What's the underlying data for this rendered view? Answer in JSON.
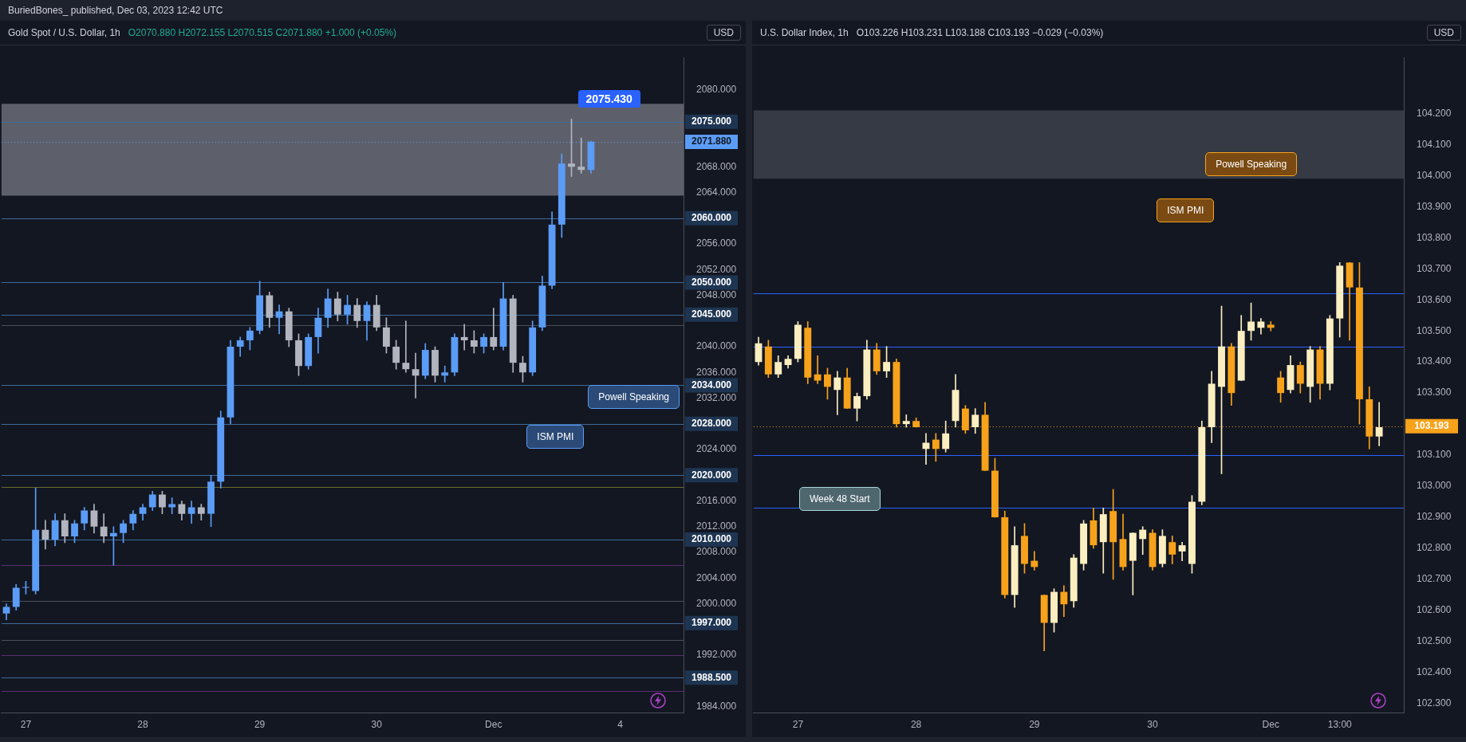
{
  "chart_data": [
    {
      "type": "candlestick",
      "title": "Gold Spot / U.S. Dollar, 1h",
      "subtitle": "O2070.880  H2072.155  L2070.515  C2071.880  +1.000 (+0.05%)",
      "ylabel": "USD",
      "categories": [
        null,
        null,
        "27",
        null,
        null,
        null,
        null,
        null,
        null,
        null,
        null,
        null,
        null,
        null,
        "28",
        null,
        null,
        null,
        null,
        null,
        null,
        null,
        null,
        null,
        null,
        null,
        "29",
        null,
        null,
        null,
        null,
        null,
        null,
        null,
        null,
        null,
        null,
        null,
        "30",
        null,
        null,
        null,
        null,
        null,
        null,
        null,
        null,
        null,
        null,
        null,
        "Dec",
        null,
        null,
        null,
        null,
        null,
        null,
        null,
        null,
        null,
        null,
        null,
        null,
        "4",
        null,
        null,
        null,
        null,
        null,
        null
      ],
      "ohlc": [
        [
          1998.5,
          2000,
          1997.5,
          1999.5
        ],
        [
          1999.5,
          2003,
          1999,
          2002.5
        ],
        [
          2002.5,
          2003.5,
          2001.5,
          2002.5
        ],
        [
          2002,
          2018,
          2001.5,
          2011.5
        ],
        [
          2011.5,
          2013,
          2008.5,
          2010
        ],
        [
          2010,
          2014,
          2009,
          2013
        ],
        [
          2013,
          2014,
          2009.5,
          2010.5
        ],
        [
          2010.5,
          2013,
          2009.5,
          2012.5
        ],
        [
          2012.5,
          2015,
          2011.5,
          2014.5
        ],
        [
          2014.5,
          2015.5,
          2011,
          2012
        ],
        [
          2012,
          2014,
          2009.5,
          2010.5
        ],
        [
          2010.5,
          2012,
          2006,
          2011
        ],
        [
          2011,
          2013,
          2009.5,
          2012.5
        ],
        [
          2012.5,
          2014.5,
          2011.5,
          2014
        ],
        [
          2014,
          2015.5,
          2013,
          2015
        ],
        [
          2015,
          2017.5,
          2014.5,
          2017
        ],
        [
          2017,
          2017.5,
          2014,
          2015
        ],
        [
          2015,
          2016.5,
          2014,
          2015.5
        ],
        [
          2015.5,
          2016,
          2013,
          2014
        ],
        [
          2014,
          2016,
          2012.5,
          2015
        ],
        [
          2015,
          2015.5,
          2013,
          2014
        ],
        [
          2014,
          2020,
          2012,
          2019
        ],
        [
          2019,
          2030,
          2018,
          2029
        ],
        [
          2029,
          2041,
          2028,
          2040
        ],
        [
          2040,
          2041.5,
          2038.5,
          2041
        ],
        [
          2041,
          2043,
          2039.5,
          2042.5
        ],
        [
          2042.5,
          2050.2,
          2042,
          2048
        ],
        [
          2048,
          2048.5,
          2043,
          2044.5
        ],
        [
          2044.5,
          2046.5,
          2042,
          2045.5
        ],
        [
          2045.5,
          2046,
          2040,
          2041
        ],
        [
          2041,
          2042,
          2035.5,
          2037
        ],
        [
          2037,
          2042,
          2036.5,
          2041.5
        ],
        [
          2041.5,
          2046,
          2039,
          2044.5
        ],
        [
          2044.5,
          2049,
          2043,
          2047.5
        ],
        [
          2047.5,
          2048.5,
          2044,
          2045
        ],
        [
          2045,
          2048,
          2043.5,
          2046.5
        ],
        [
          2046.5,
          2047.5,
          2043,
          2044
        ],
        [
          2044,
          2047,
          2041,
          2046.5
        ],
        [
          2046.5,
          2048,
          2042.5,
          2043
        ],
        [
          2043,
          2044.5,
          2039,
          2040
        ],
        [
          2040,
          2041,
          2036.5,
          2037.5
        ],
        [
          2037.5,
          2044,
          2036,
          2036.5
        ],
        [
          2036.5,
          2039,
          2032,
          2035.5
        ],
        [
          2035.5,
          2040.5,
          2035,
          2039.5
        ],
        [
          2039.5,
          2040,
          2034.5,
          2035.5
        ],
        [
          2035.5,
          2037,
          2034.5,
          2036
        ],
        [
          2036,
          2042,
          2035.5,
          2041.5
        ],
        [
          2041.5,
          2043.5,
          2039.5,
          2041
        ],
        [
          2041,
          2042.5,
          2039,
          2040
        ],
        [
          2040,
          2042,
          2039,
          2041.5
        ],
        [
          2041.5,
          2046,
          2039.5,
          2040
        ],
        [
          2040,
          2050,
          2039.5,
          2047.5
        ],
        [
          2047.5,
          2048,
          2036,
          2037.5
        ],
        [
          2037.5,
          2038.5,
          2034.5,
          2036
        ],
        [
          2036,
          2044,
          2035.5,
          2043
        ],
        [
          2043,
          2051,
          2042.5,
          2049.5
        ],
        [
          2049.5,
          2061,
          2049,
          2059
        ],
        [
          2059,
          2070,
          2057,
          2068.5
        ],
        [
          2068.5,
          2075.43,
          2066.5,
          2068
        ],
        [
          2068,
          2072.5,
          2067,
          2067.5
        ],
        [
          2067.5,
          2072,
          2067,
          2071.9
        ],
        null,
        null,
        null,
        null,
        null,
        null,
        null,
        null,
        null
      ],
      "colors": [
        "#5b9cf6",
        "#5b9cf6",
        "#5b9cf6",
        "#5b9cf6",
        "#b2b5be",
        "#5b9cf6",
        "#b2b5be",
        "#5b9cf6",
        "#5b9cf6",
        "#b2b5be",
        "#b2b5be",
        "#5b9cf6",
        "#5b9cf6",
        "#5b9cf6",
        "#5b9cf6",
        "#5b9cf6",
        "#b2b5be",
        "#5b9cf6",
        "#b2b5be",
        "#5b9cf6",
        "#b2b5be",
        "#5b9cf6",
        "#5b9cf6",
        "#5b9cf6",
        "#5b9cf6",
        "#5b9cf6",
        "#5b9cf6",
        "#b2b5be",
        "#5b9cf6",
        "#b2b5be",
        "#b2b5be",
        "#5b9cf6",
        "#5b9cf6",
        "#5b9cf6",
        "#b2b5be",
        "#5b9cf6",
        "#b2b5be",
        "#5b9cf6",
        "#b2b5be",
        "#b2b5be",
        "#b2b5be",
        "#b2b5be",
        "#b2b5be",
        "#5b9cf6",
        "#b2b5be",
        "#5b9cf6",
        "#5b9cf6",
        "#b2b5be",
        "#b2b5be",
        "#5b9cf6",
        "#b2b5be",
        "#5b9cf6",
        "#b2b5be",
        "#b2b5be",
        "#5b9cf6",
        "#5b9cf6",
        "#5b9cf6",
        "#5b9cf6",
        "#b2b5be",
        "#b2b5be",
        "#5b9cf6",
        null,
        null,
        null,
        null,
        null,
        null,
        null,
        null,
        null
      ],
      "ylim": [
        1983,
        2085
      ],
      "yticks": [
        {
          "value": 1984,
          "label": "1984.000"
        },
        {
          "value": 1992,
          "label": "1992.000"
        },
        {
          "value": 2000,
          "label": "2000.000"
        },
        {
          "value": 2004,
          "label": "2004.000"
        },
        {
          "value": 2008,
          "label": "2008.000"
        },
        {
          "value": 2012,
          "label": "2012.000"
        },
        {
          "value": 2016,
          "label": "2016.000"
        },
        {
          "value": 2024,
          "label": "2024.000"
        },
        {
          "value": 2032,
          "label": "2032.000"
        },
        {
          "value": 2036,
          "label": "2036.000"
        },
        {
          "value": 2040,
          "label": "2040.000"
        },
        {
          "value": 2048,
          "label": "2048.000"
        },
        {
          "value": 2052,
          "label": "2052.000"
        },
        {
          "value": 2056,
          "label": "2056.000"
        },
        {
          "value": 2064,
          "label": "2064.000"
        },
        {
          "value": 2068,
          "label": "2068.000"
        },
        {
          "value": 2080,
          "label": "2080.000"
        }
      ],
      "bands": [
        {
          "axis": "y",
          "from": 2063.5,
          "to": 2077.8,
          "color": "#5d606b"
        }
      ],
      "ref_lines": [
        {
          "axis": "y",
          "value": 2075,
          "label": "2075.000",
          "color": "#3d6a9a"
        },
        {
          "axis": "y",
          "value": 2060,
          "label": "2060.000",
          "color": "#3d6a9a"
        },
        {
          "axis": "y",
          "value": 2050,
          "label": "2050.000",
          "color": "#3d6a9a"
        },
        {
          "axis": "y",
          "value": 2045,
          "label": "2045.000",
          "color": "#3d6a9a"
        },
        {
          "axis": "y",
          "value": 2034,
          "label": "2034.000",
          "color": "#3d6a9a"
        },
        {
          "axis": "y",
          "value": 2028,
          "label": "2028.000",
          "color": "#3d6a9a"
        },
        {
          "axis": "y",
          "value": 2020,
          "label": "2020.000",
          "color": "#3d6a9a"
        },
        {
          "axis": "y",
          "value": 2010,
          "label": "2010.000",
          "color": "#3d6a9a"
        },
        {
          "axis": "y",
          "value": 1997,
          "label": "1997.000",
          "color": "#3d6a9a"
        },
        {
          "axis": "y",
          "value": 1988.5,
          "label": "1988.500",
          "color": "#3d6a9a"
        },
        {
          "axis": "y",
          "value": 2071.88,
          "label": "2071.880",
          "color": "#5b9cf6",
          "line_style": "dotted"
        },
        {
          "axis": "y",
          "value": 2018.2,
          "color": "#6b6a2a"
        },
        {
          "axis": "y",
          "value": 2006,
          "color": "#5a2d6e"
        },
        {
          "axis": "y",
          "value": 1992,
          "color": "#5a2d6e"
        },
        {
          "axis": "y",
          "value": 1986.4,
          "color": "#5a2d6e"
        },
        {
          "axis": "y",
          "value": 2043.3,
          "color": "#4a4e58"
        },
        {
          "axis": "y",
          "value": 2000.4,
          "color": "#4a4e58"
        },
        {
          "axis": "y",
          "value": 1994.4,
          "color": "#4a4e58"
        }
      ],
      "annotations": [
        "BuriedBones_ published, Dec 03, 2023 12:42 UTC",
        {
          "text": "2075.430",
          "y": 2075.43
        },
        "Powell Speaking",
        "ISM PMI"
      ]
    },
    {
      "type": "candlestick",
      "title": "U.S. Dollar Index, 1h",
      "subtitle": "O103.226  H103.231  L103.188  C103.193  −0.029 (−0.03%)",
      "ylabel": "USD",
      "categories": [
        null,
        null,
        null,
        null,
        "27",
        null,
        null,
        null,
        null,
        null,
        null,
        null,
        null,
        null,
        null,
        null,
        "28",
        null,
        null,
        null,
        null,
        null,
        null,
        null,
        null,
        null,
        null,
        null,
        "29",
        null,
        null,
        null,
        null,
        null,
        null,
        null,
        null,
        null,
        null,
        null,
        "30",
        null,
        null,
        null,
        null,
        null,
        null,
        null,
        null,
        null,
        null,
        null,
        "Dec",
        null,
        null,
        null,
        null,
        null,
        null,
        "13:00",
        null,
        null,
        null,
        null,
        null,
        null
      ],
      "ohlc": [
        [
          103.4,
          103.48,
          103.39,
          103.46
        ],
        [
          103.45,
          103.47,
          103.35,
          103.36
        ],
        [
          103.36,
          103.42,
          103.35,
          103.4
        ],
        [
          103.39,
          103.42,
          103.38,
          103.41
        ],
        [
          103.41,
          103.53,
          103.4,
          103.52
        ],
        [
          103.51,
          103.53,
          103.33,
          103.35
        ],
        [
          103.36,
          103.42,
          103.33,
          103.34
        ],
        [
          103.36,
          103.38,
          103.28,
          103.32
        ],
        [
          103.31,
          103.37,
          103.23,
          103.35
        ],
        [
          103.35,
          103.38,
          103.25,
          103.25
        ],
        [
          103.25,
          103.3,
          103.21,
          103.29
        ],
        [
          103.29,
          103.47,
          103.28,
          103.44
        ],
        [
          103.44,
          103.46,
          103.36,
          103.37
        ],
        [
          103.37,
          103.45,
          103.35,
          103.4
        ],
        [
          103.4,
          103.41,
          103.19,
          103.2
        ],
        [
          103.2,
          103.23,
          103.19,
          103.21
        ],
        [
          103.21,
          103.22,
          103.19,
          103.19
        ],
        [
          103.12,
          103.17,
          103.07,
          103.14
        ],
        [
          103.15,
          103.17,
          103.08,
          103.12
        ],
        [
          103.12,
          103.21,
          103.11,
          103.17
        ],
        [
          103.21,
          103.36,
          103.19,
          103.31
        ],
        [
          103.25,
          103.26,
          103.17,
          103.18
        ],
        [
          103.19,
          103.25,
          103.17,
          103.23
        ],
        [
          103.23,
          103.27,
          103.05,
          103.05
        ],
        [
          103.05,
          103.09,
          102.9,
          102.9
        ],
        [
          102.9,
          102.92,
          102.64,
          102.65
        ],
        [
          102.65,
          102.87,
          102.61,
          102.81
        ],
        [
          102.84,
          102.88,
          102.72,
          102.75
        ],
        [
          102.76,
          102.79,
          102.73,
          102.74
        ],
        [
          102.65,
          102.65,
          102.47,
          102.56
        ],
        [
          102.56,
          102.67,
          102.53,
          102.66
        ],
        [
          102.66,
          102.68,
          102.58,
          102.62
        ],
        [
          102.63,
          102.78,
          102.61,
          102.77
        ],
        [
          102.75,
          102.89,
          102.73,
          102.88
        ],
        [
          102.89,
          102.93,
          102.8,
          102.81
        ],
        [
          102.82,
          102.93,
          102.72,
          102.91
        ],
        [
          102.92,
          102.99,
          102.7,
          102.82
        ],
        [
          102.83,
          102.91,
          102.73,
          102.74
        ],
        [
          102.76,
          102.85,
          102.65,
          102.85
        ],
        [
          102.83,
          102.87,
          102.78,
          102.86
        ],
        [
          102.85,
          102.86,
          102.73,
          102.74
        ],
        [
          102.75,
          102.86,
          102.74,
          102.84
        ],
        [
          102.82,
          102.84,
          102.75,
          102.78
        ],
        [
          102.79,
          102.82,
          102.76,
          102.81
        ],
        [
          102.75,
          102.97,
          102.72,
          102.95
        ],
        [
          102.95,
          103.21,
          102.94,
          103.19
        ],
        [
          103.19,
          103.37,
          103.14,
          103.33
        ],
        [
          103.32,
          103.58,
          103.04,
          103.45
        ],
        [
          103.45,
          103.46,
          103.26,
          103.3
        ],
        [
          103.34,
          103.55,
          103.34,
          103.5
        ],
        [
          103.5,
          103.59,
          103.47,
          103.53
        ],
        [
          103.51,
          103.54,
          103.49,
          103.53
        ],
        [
          103.52,
          103.53,
          103.5,
          103.51
        ],
        [
          103.35,
          103.37,
          103.27,
          103.3
        ],
        [
          103.31,
          103.42,
          103.3,
          103.39
        ],
        [
          103.39,
          103.4,
          103.3,
          103.33
        ],
        [
          103.32,
          103.45,
          103.27,
          103.44
        ],
        [
          103.44,
          103.45,
          103.28,
          103.33
        ],
        [
          103.33,
          103.55,
          103.31,
          103.54
        ],
        [
          103.54,
          103.72,
          103.48,
          103.71
        ],
        [
          103.72,
          103.72,
          103.47,
          103.64
        ],
        [
          103.64,
          103.72,
          103.2,
          103.28
        ],
        [
          103.28,
          103.32,
          103.12,
          103.16
        ],
        [
          103.16,
          103.27,
          103.13,
          103.19
        ],
        null,
        null
      ],
      "colors": [
        "#fbeec0",
        "#f7a21b",
        "#fbeec0",
        "#fbeec0",
        "#fbeec0",
        "#f7a21b",
        "#f7a21b",
        "#f7a21b",
        "#fbeec0",
        "#f7a21b",
        "#fbeec0",
        "#fbeec0",
        "#f7a21b",
        "#fbeec0",
        "#f7a21b",
        "#fbeec0",
        "#f7a21b",
        "#fbeec0",
        "#f7a21b",
        "#fbeec0",
        "#fbeec0",
        "#f7a21b",
        "#fbeec0",
        "#f7a21b",
        "#f7a21b",
        "#f7a21b",
        "#fbeec0",
        "#f7a21b",
        "#f7a21b",
        "#f7a21b",
        "#fbeec0",
        "#f7a21b",
        "#fbeec0",
        "#fbeec0",
        "#f7a21b",
        "#fbeec0",
        "#f7a21b",
        "#f7a21b",
        "#fbeec0",
        "#fbeec0",
        "#f7a21b",
        "#fbeec0",
        "#f7a21b",
        "#fbeec0",
        "#fbeec0",
        "#fbeec0",
        "#fbeec0",
        "#fbeec0",
        "#f7a21b",
        "#fbeec0",
        "#fbeec0",
        "#fbeec0",
        "#f7a21b",
        "#f7a21b",
        "#fbeec0",
        "#f7a21b",
        "#fbeec0",
        "#f7a21b",
        "#fbeec0",
        "#fbeec0",
        "#f7a21b",
        "#f7a21b",
        "#f7a21b",
        "#fbeec0",
        null,
        null
      ],
      "ylim": [
        102.27,
        104.38
      ],
      "yticks": [
        {
          "value": 102.3,
          "label": "102.300"
        },
        {
          "value": 102.4,
          "label": "102.400"
        },
        {
          "value": 102.5,
          "label": "102.500"
        },
        {
          "value": 102.6,
          "label": "102.600"
        },
        {
          "value": 102.7,
          "label": "102.700"
        },
        {
          "value": 102.8,
          "label": "102.800"
        },
        {
          "value": 102.9,
          "label": "102.900"
        },
        {
          "value": 103.0,
          "label": "103.000"
        },
        {
          "value": 103.1,
          "label": "103.100"
        },
        {
          "value": 103.3,
          "label": "103.300"
        },
        {
          "value": 103.4,
          "label": "103.400"
        },
        {
          "value": 103.5,
          "label": "103.500"
        },
        {
          "value": 103.6,
          "label": "103.600"
        },
        {
          "value": 103.7,
          "label": "103.700"
        },
        {
          "value": 103.8,
          "label": "103.800"
        },
        {
          "value": 103.9,
          "label": "103.900"
        },
        {
          "value": 104.0,
          "label": "104.000"
        },
        {
          "value": 104.1,
          "label": "104.100"
        },
        {
          "value": 104.2,
          "label": "104.200"
        }
      ],
      "bands": [
        {
          "axis": "y",
          "from": 103.99,
          "to": 104.21,
          "color": "#363a45"
        }
      ],
      "ref_lines": [
        {
          "axis": "y",
          "value": 103.62,
          "color": "#2962ff"
        },
        {
          "axis": "y",
          "value": 103.45,
          "color": "#2962ff"
        },
        {
          "axis": "y",
          "value": 103.1,
          "color": "#2962ff"
        },
        {
          "axis": "y",
          "value": 102.93,
          "color": "#2962ff"
        },
        {
          "axis": "y",
          "value": 103.193,
          "label": "103.193",
          "color": "#f7a21b",
          "line_style": "dotted"
        }
      ],
      "annotations": [
        "Powell Speaking",
        "ISM PMI",
        "Week 48 Start"
      ]
    }
  ]
}
